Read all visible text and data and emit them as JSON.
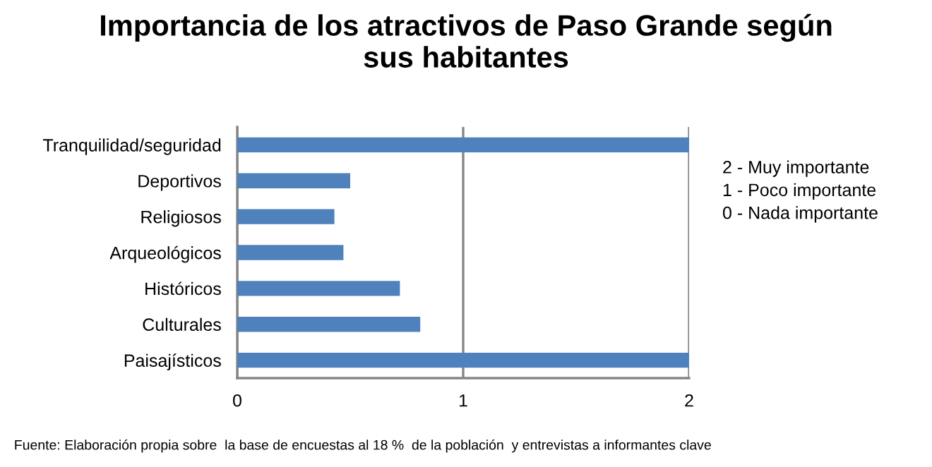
{
  "chart_data": {
    "type": "bar",
    "orientation": "horizontal",
    "title": "Importancia de los atractivos de Paso Grande según\nsus habitantes",
    "categories": [
      "Tranquilidad/seguridad",
      "Deportivos",
      "Religiosos",
      "Arqueológicos",
      "Históricos",
      "Culturales",
      "Paisajísticos"
    ],
    "values": [
      2,
      0.5,
      0.43,
      0.47,
      0.72,
      0.81,
      2
    ],
    "color": "#4f81bd",
    "xlim": [
      0,
      2
    ],
    "xticks": [
      0,
      1,
      2
    ],
    "grid": "x",
    "annotations": [
      "2 - Muy importante\n1 - Poco importante\n0 - Nada importante",
      "Fuente: Elaboración propia sobre  la base de encuestas al 18 %  de la población  y entrevistas a informantes clave"
    ]
  }
}
